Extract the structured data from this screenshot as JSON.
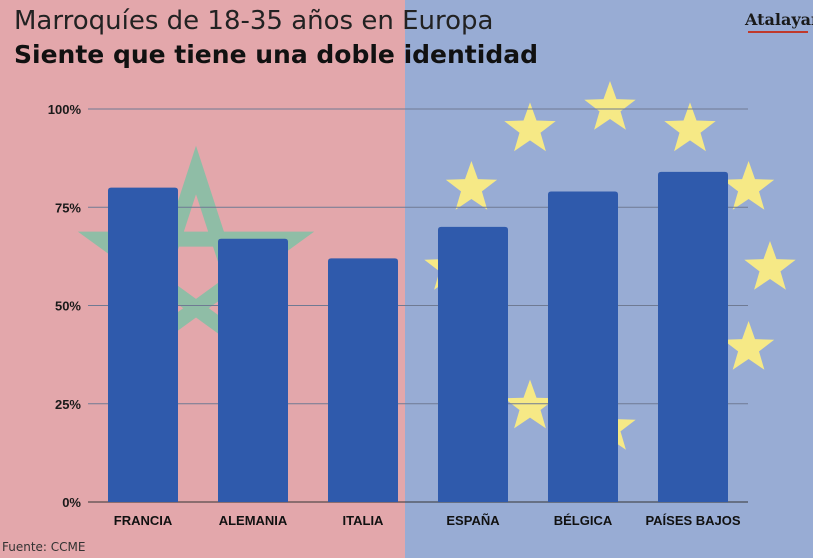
{
  "title": "Marroquíes de 18-35 años en Europa",
  "subtitle": "Siente que tiene una doble identidad",
  "source": "Fuente: CCME",
  "logo": {
    "name": "Atalayar",
    "dot": "."
  },
  "colors": {
    "left_bg": "#e3a7ab",
    "right_bg": "#98acd4",
    "bar": "#2f5aac",
    "grid": "#6f7a93",
    "star": "#f6e986",
    "morocco_star": "#8fbda6"
  },
  "chart_data": {
    "type": "bar",
    "title": "",
    "xlabel": "",
    "ylabel": "",
    "ylim": [
      0,
      100
    ],
    "yticks": [
      0,
      25,
      50,
      75,
      100
    ],
    "ytick_labels": [
      "0%",
      "25%",
      "50%",
      "75%",
      "100%"
    ],
    "categories": [
      "FRANCIA",
      "ALEMANIA",
      "ITALIA",
      "ESPAÑA",
      "BÉLGICA",
      "PAÍSES BAJOS"
    ],
    "values": [
      80,
      67,
      62,
      70,
      79,
      84
    ],
    "grid": true
  }
}
